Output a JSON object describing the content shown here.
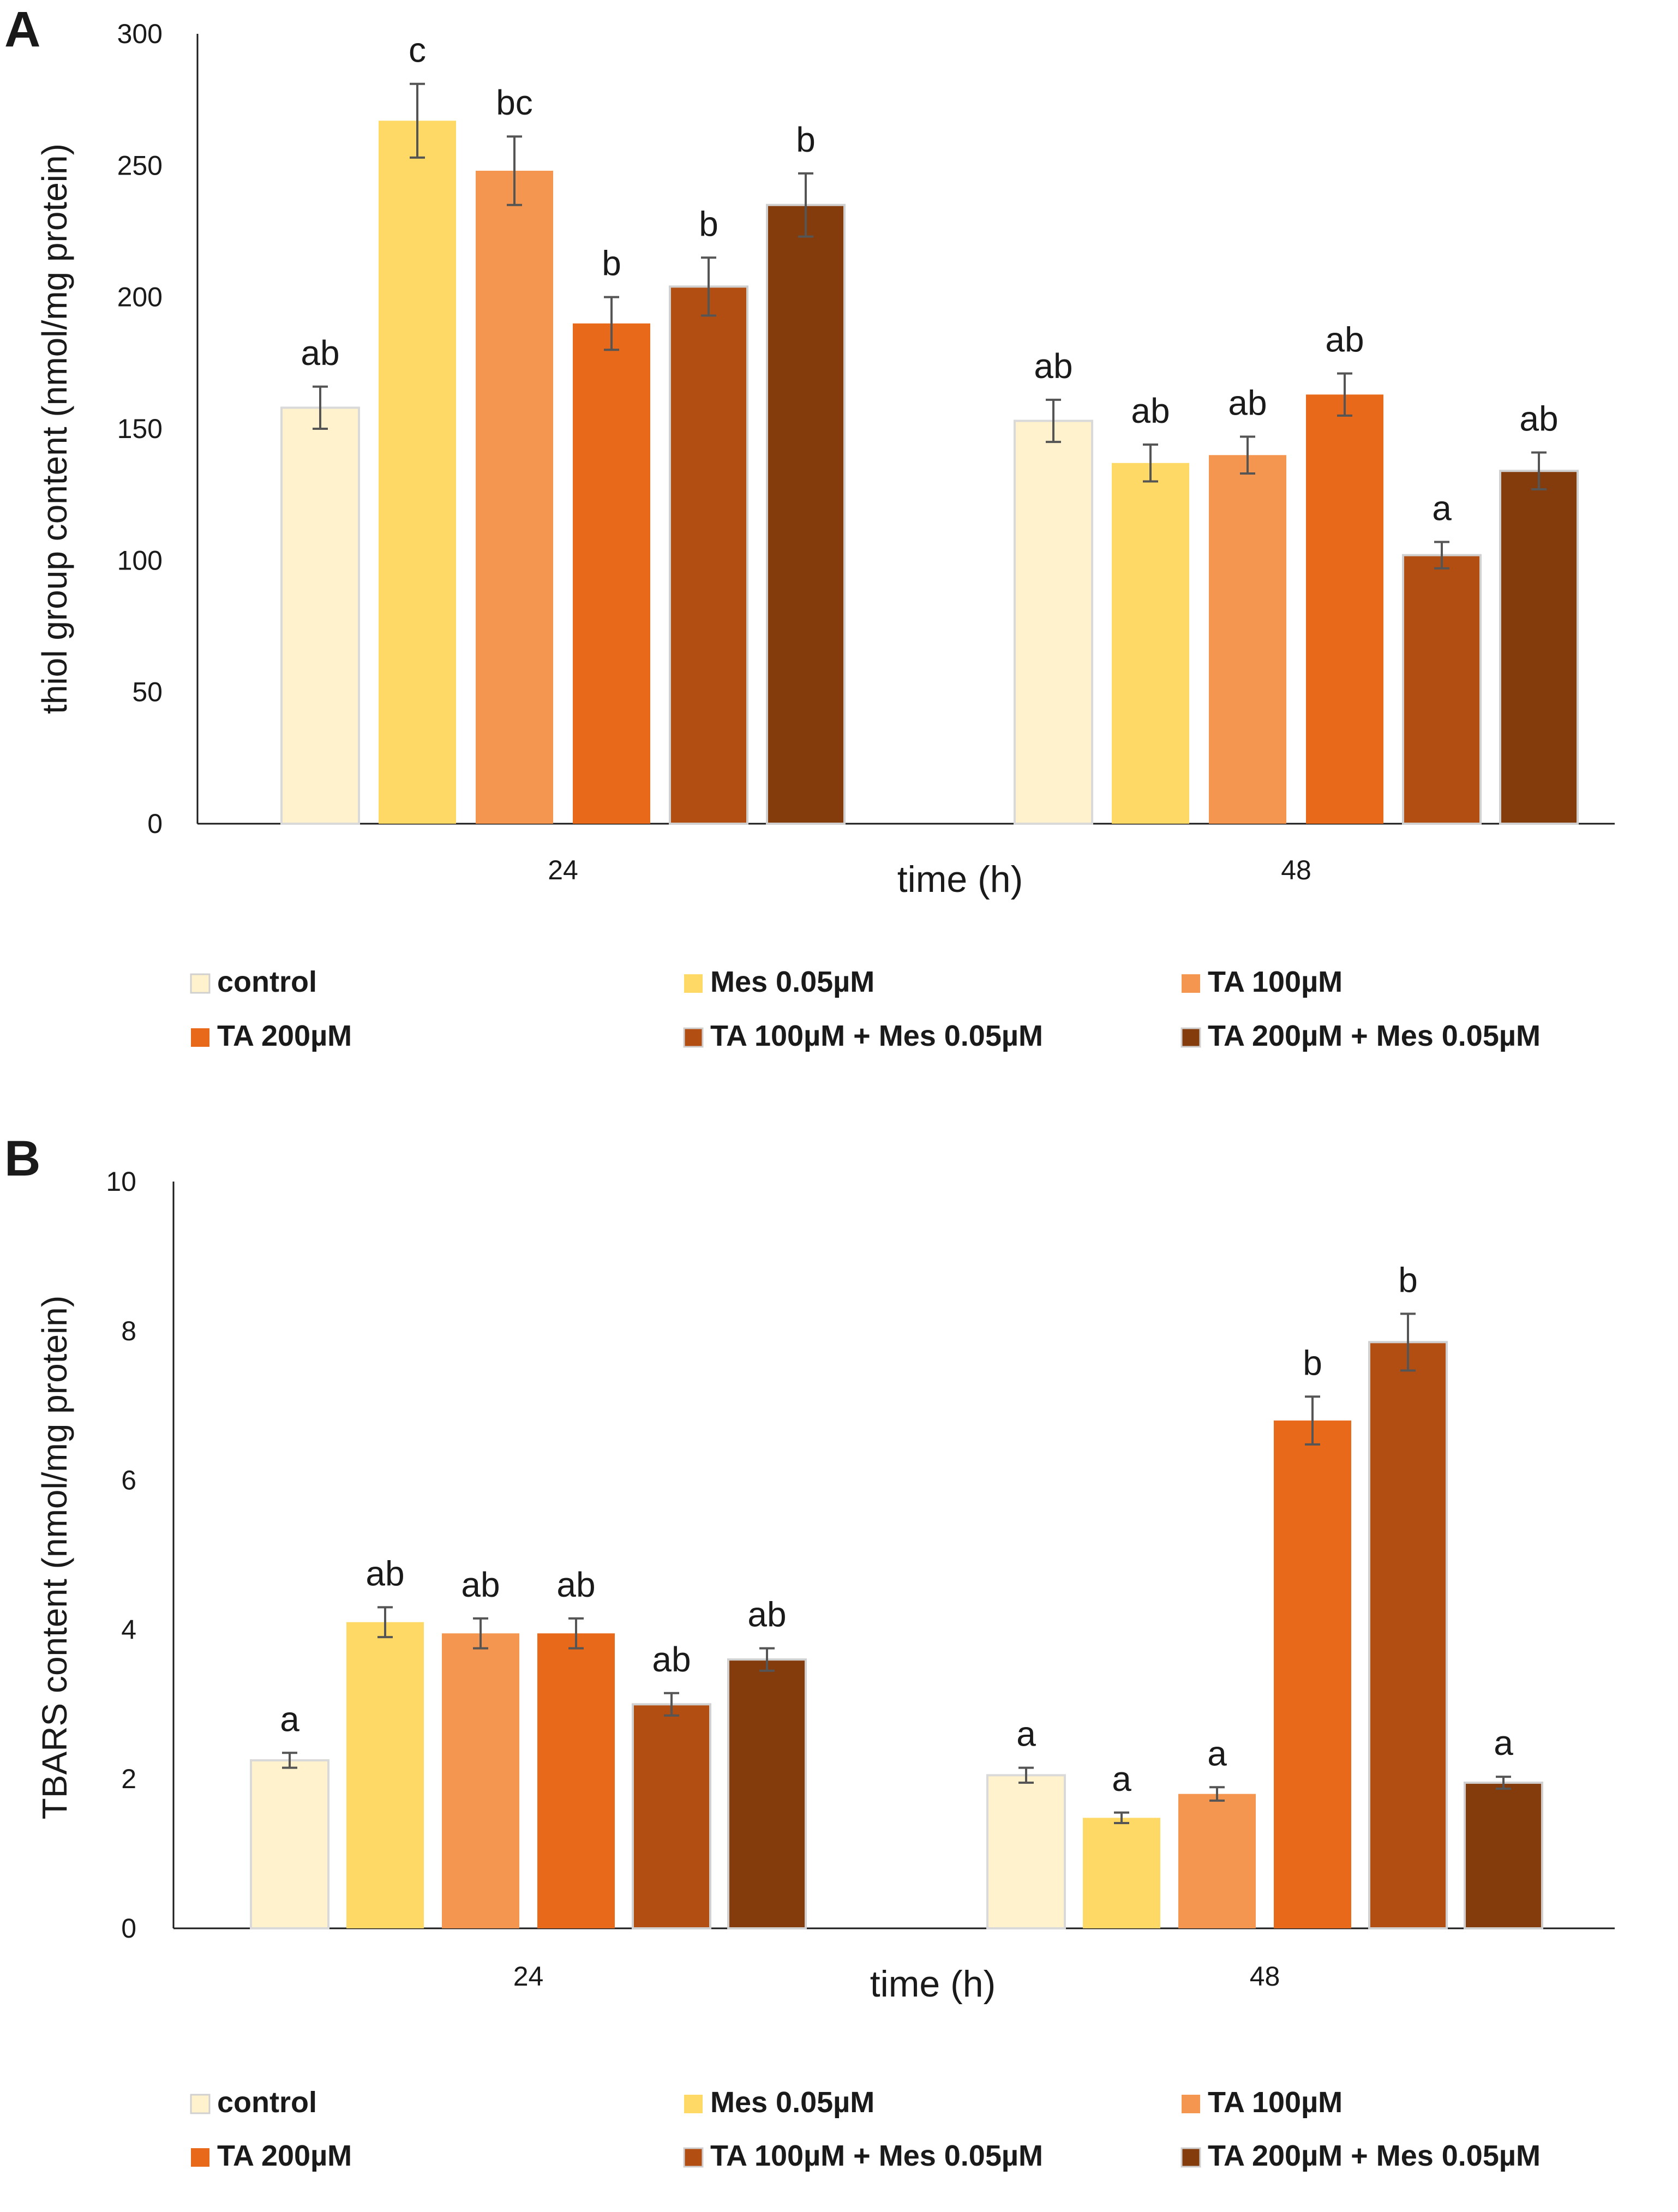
{
  "series_names": [
    "control",
    "Mes 0.05µM",
    "TA 100µM",
    "TA 200µM",
    "TA 100µM + Mes 0.05µM",
    "TA 200µM + Mes 0.05µM"
  ],
  "colors": [
    "#FFF2CC",
    "#FFD966",
    "#F4964F",
    "#E8691A",
    "#B24E12",
    "#843C0C"
  ],
  "chart_data": [
    {
      "panel": "A",
      "type": "bar",
      "title": "",
      "xlabel": "time (h)",
      "ylabel": "thiol group content (nmol/mg protein)",
      "categories": [
        "24",
        "48"
      ],
      "ylim": [
        0,
        300
      ],
      "yticks": [
        0,
        50,
        100,
        150,
        200,
        250,
        300
      ],
      "grid": false,
      "legend": "bottom",
      "series": [
        {
          "name": "control",
          "values": [
            158,
            153
          ],
          "errors": [
            8,
            8
          ],
          "labels": [
            "ab",
            "ab"
          ]
        },
        {
          "name": "Mes 0.05µM",
          "values": [
            267,
            137
          ],
          "errors": [
            14,
            7
          ],
          "labels": [
            "c",
            "ab"
          ]
        },
        {
          "name": "TA 100µM",
          "values": [
            248,
            140
          ],
          "errors": [
            13,
            7
          ],
          "labels": [
            "bc",
            "ab"
          ]
        },
        {
          "name": "TA 200µM",
          "values": [
            190,
            163
          ],
          "errors": [
            10,
            8
          ],
          "labels": [
            "b",
            "ab"
          ]
        },
        {
          "name": "TA 100µM + Mes 0.05µM",
          "values": [
            204,
            102
          ],
          "errors": [
            11,
            5
          ],
          "labels": [
            "b",
            "a"
          ]
        },
        {
          "name": "TA 200µM + Mes 0.05µM",
          "values": [
            235,
            134
          ],
          "errors": [
            12,
            7
          ],
          "labels": [
            "b",
            "ab"
          ]
        }
      ]
    },
    {
      "panel": "B",
      "type": "bar",
      "title": "",
      "xlabel": "time (h)",
      "ylabel": "TBARS content (nmol/mg protein)",
      "categories": [
        "24",
        "48"
      ],
      "ylim": [
        0,
        10
      ],
      "yticks": [
        0,
        2,
        4,
        6,
        8,
        10
      ],
      "grid": false,
      "legend": "bottom",
      "series": [
        {
          "name": "control",
          "values": [
            2.25,
            2.05
          ],
          "errors": [
            0.1,
            0.1
          ],
          "labels": [
            "a",
            "a"
          ]
        },
        {
          "name": "Mes 0.05µM",
          "values": [
            4.1,
            1.48
          ],
          "errors": [
            0.2,
            0.07
          ],
          "labels": [
            "ab",
            "a"
          ]
        },
        {
          "name": "TA 100µM",
          "values": [
            3.95,
            1.8
          ],
          "errors": [
            0.2,
            0.09
          ],
          "labels": [
            "ab",
            "a"
          ]
        },
        {
          "name": "TA 200µM",
          "values": [
            3.95,
            6.8
          ],
          "errors": [
            0.2,
            0.32
          ],
          "labels": [
            "ab",
            "b"
          ]
        },
        {
          "name": "TA 100µM + Mes 0.05µM",
          "values": [
            3.0,
            7.85
          ],
          "errors": [
            0.15,
            0.38
          ],
          "labels": [
            "ab",
            "b"
          ]
        },
        {
          "name": "TA 200µM + Mes 0.05µM",
          "values": [
            3.6,
            1.95
          ],
          "errors": [
            0.15,
            0.08
          ],
          "labels": [
            "ab",
            "a"
          ]
        }
      ]
    }
  ]
}
